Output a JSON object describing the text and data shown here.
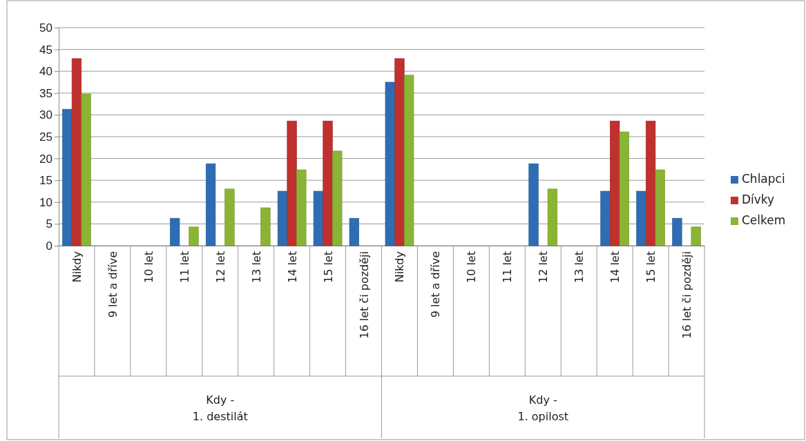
{
  "chart_data": {
    "type": "bar",
    "categories": [
      "Nikdy",
      "9 let a dříve",
      "10 let",
      "11 let",
      "12 let",
      "13 let",
      "14 let",
      "15 let",
      "16 let či později",
      "Nikdy",
      "9 let a dříve",
      "10 let",
      "11 let",
      "12 let",
      "13 let",
      "14 let",
      "15 let",
      "16 let či později"
    ],
    "series": [
      {
        "name": "Chlapci",
        "color": "#2e6db4",
        "values": [
          31.3,
          0,
          0,
          6.3,
          18.8,
          0,
          12.5,
          12.5,
          6.3,
          37.5,
          0,
          0,
          0,
          18.8,
          0,
          12.5,
          12.5,
          6.3
        ]
      },
      {
        "name": "Dívky",
        "color": "#c0302e",
        "values": [
          42.9,
          0,
          0,
          0,
          0,
          0,
          28.6,
          28.6,
          0,
          42.9,
          0,
          0,
          0,
          0,
          0,
          28.6,
          28.6,
          0
        ]
      },
      {
        "name": "Celkem",
        "color": "#8ab534",
        "values": [
          34.8,
          0,
          0,
          4.3,
          13.0,
          8.7,
          17.4,
          21.7,
          0,
          39.1,
          0,
          0,
          0,
          13.0,
          0,
          26.1,
          17.4,
          4.3
        ]
      }
    ],
    "annotations": [
      "Kdy -\n1. destilát",
      "Kdy -\n1. opilost"
    ],
    "ylim": [
      0,
      50
    ],
    "yticks": [
      0,
      5,
      10,
      15,
      20,
      25,
      30,
      35,
      40,
      45,
      50
    ],
    "grid": "y",
    "legend": "right"
  }
}
